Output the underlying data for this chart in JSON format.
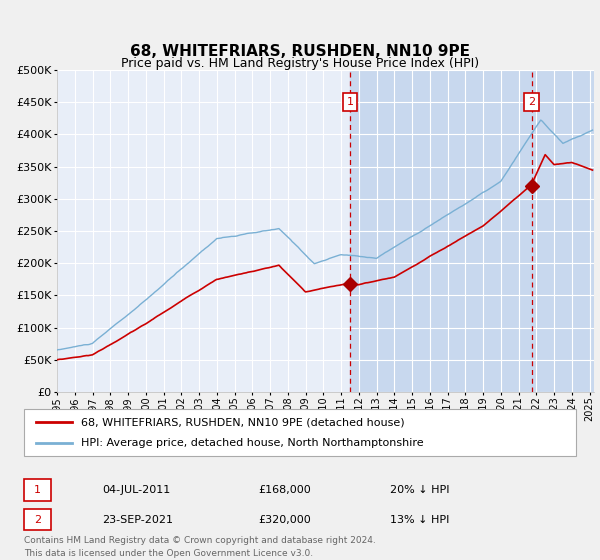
{
  "title": "68, WHITEFRIARS, RUSHDEN, NN10 9PE",
  "subtitle": "Price paid vs. HM Land Registry's House Price Index (HPI)",
  "legend_line1": "68, WHITEFRIARS, RUSHDEN, NN10 9PE (detached house)",
  "legend_line2": "HPI: Average price, detached house, North Northamptonshire",
  "annotation1_date": "04-JUL-2011",
  "annotation1_price": "£168,000",
  "annotation1_hpi": "20% ↓ HPI",
  "annotation1_year": 2011.5,
  "annotation1_value": 168000,
  "annotation2_date": "23-SEP-2021",
  "annotation2_price": "£320,000",
  "annotation2_hpi": "13% ↓ HPI",
  "annotation2_year": 2021.73,
  "annotation2_value": 320000,
  "footer_line1": "Contains HM Land Registry data © Crown copyright and database right 2024.",
  "footer_line2": "This data is licensed under the Open Government Licence v3.0.",
  "ylim": [
    0,
    500000
  ],
  "yticks": [
    0,
    50000,
    100000,
    150000,
    200000,
    250000,
    300000,
    350000,
    400000,
    450000,
    500000
  ],
  "fig_bg": "#f0f0f0",
  "plot_bg": "#e8eef8",
  "grid_color": "#ffffff",
  "hpi_color": "#7ab0d4",
  "price_color": "#cc0000",
  "vline_color": "#cc0000",
  "span_color": "#c8d8ee",
  "start_year": 1995,
  "end_year": 2025.25
}
